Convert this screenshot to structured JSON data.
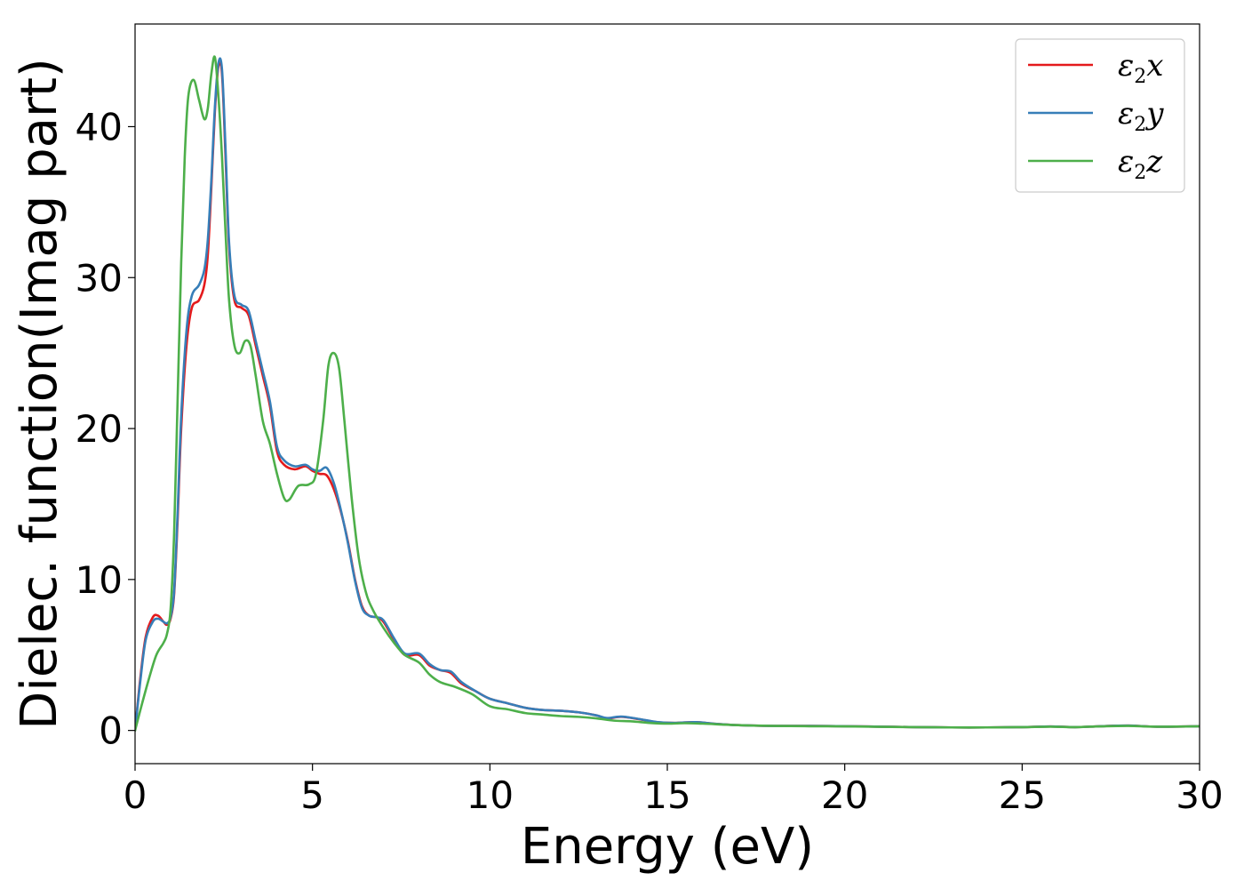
{
  "chart_data": {
    "type": "line",
    "title": "",
    "xlabel": "Energy (eV)",
    "ylabel": "Dielec. function(Imag part)",
    "xlim": [
      0,
      30
    ],
    "ylim": [
      -2.2,
      46.8
    ],
    "xticks": [
      0,
      5,
      10,
      15,
      20,
      25,
      30
    ],
    "yticks": [
      0,
      10,
      20,
      30,
      40
    ],
    "grid": false,
    "legend_position": "top-right",
    "series": [
      {
        "name": "ε2x",
        "legend_base": "ε",
        "legend_sub": "2",
        "legend_var": "x",
        "color": "#e41a1c",
        "points": [
          [
            0,
            0
          ],
          [
            0.15,
            3.5
          ],
          [
            0.3,
            6.2
          ],
          [
            0.5,
            7.5
          ],
          [
            0.65,
            7.6
          ],
          [
            0.8,
            7.2
          ],
          [
            0.9,
            7.0
          ],
          [
            1.0,
            7.4
          ],
          [
            1.1,
            9.0
          ],
          [
            1.2,
            14.0
          ],
          [
            1.3,
            20.0
          ],
          [
            1.45,
            25.5
          ],
          [
            1.6,
            28.0
          ],
          [
            1.8,
            28.5
          ],
          [
            1.95,
            29.5
          ],
          [
            2.05,
            31.5
          ],
          [
            2.15,
            36.0
          ],
          [
            2.25,
            41.0
          ],
          [
            2.35,
            44.0
          ],
          [
            2.45,
            43.5
          ],
          [
            2.55,
            38.0
          ],
          [
            2.65,
            32.0
          ],
          [
            2.8,
            28.5
          ],
          [
            3.0,
            28.0
          ],
          [
            3.2,
            27.5
          ],
          [
            3.4,
            25.5
          ],
          [
            3.6,
            23.5
          ],
          [
            3.8,
            21.5
          ],
          [
            4.0,
            18.5
          ],
          [
            4.2,
            17.6
          ],
          [
            4.5,
            17.3
          ],
          [
            4.8,
            17.5
          ],
          [
            5.0,
            17.2
          ],
          [
            5.2,
            17.0
          ],
          [
            5.4,
            16.9
          ],
          [
            5.6,
            16.0
          ],
          [
            5.8,
            14.5
          ],
          [
            6.0,
            12.5
          ],
          [
            6.2,
            10.0
          ],
          [
            6.4,
            8.2
          ],
          [
            6.6,
            7.6
          ],
          [
            6.8,
            7.5
          ],
          [
            7.0,
            7.2
          ],
          [
            7.3,
            6.0
          ],
          [
            7.6,
            5.0
          ],
          [
            8.0,
            5.0
          ],
          [
            8.3,
            4.3
          ],
          [
            8.6,
            4.0
          ],
          [
            8.9,
            3.8
          ],
          [
            9.2,
            3.1
          ],
          [
            9.6,
            2.6
          ],
          [
            10.0,
            2.1
          ],
          [
            10.5,
            1.8
          ],
          [
            11.0,
            1.5
          ],
          [
            11.5,
            1.35
          ],
          [
            12.0,
            1.3
          ],
          [
            12.5,
            1.2
          ],
          [
            13.0,
            1.0
          ],
          [
            13.3,
            0.8
          ],
          [
            13.7,
            0.9
          ],
          [
            14.2,
            0.75
          ],
          [
            14.7,
            0.55
          ],
          [
            15.2,
            0.5
          ],
          [
            15.8,
            0.55
          ],
          [
            16.3,
            0.45
          ],
          [
            17.0,
            0.35
          ],
          [
            18.0,
            0.3
          ],
          [
            19.0,
            0.3
          ],
          [
            20.0,
            0.28
          ],
          [
            21.0,
            0.25
          ],
          [
            22.0,
            0.22
          ],
          [
            23.0,
            0.2
          ],
          [
            24.0,
            0.2
          ],
          [
            25.0,
            0.22
          ],
          [
            25.8,
            0.26
          ],
          [
            26.5,
            0.22
          ],
          [
            27.2,
            0.28
          ],
          [
            28.0,
            0.32
          ],
          [
            28.8,
            0.25
          ],
          [
            30.0,
            0.28
          ]
        ]
      },
      {
        "name": "ε2y",
        "legend_base": "ε",
        "legend_sub": "2",
        "legend_var": "y",
        "color": "#377eb8",
        "points": [
          [
            0,
            0
          ],
          [
            0.15,
            3.3
          ],
          [
            0.3,
            6.0
          ],
          [
            0.5,
            7.2
          ],
          [
            0.65,
            7.4
          ],
          [
            0.8,
            7.2
          ],
          [
            0.9,
            7.1
          ],
          [
            1.0,
            7.5
          ],
          [
            1.1,
            9.2
          ],
          [
            1.2,
            14.5
          ],
          [
            1.3,
            20.8
          ],
          [
            1.45,
            26.5
          ],
          [
            1.6,
            28.8
          ],
          [
            1.8,
            29.5
          ],
          [
            1.95,
            30.5
          ],
          [
            2.05,
            32.5
          ],
          [
            2.15,
            36.5
          ],
          [
            2.25,
            41.3
          ],
          [
            2.35,
            44.2
          ],
          [
            2.45,
            43.8
          ],
          [
            2.55,
            38.5
          ],
          [
            2.65,
            32.3
          ],
          [
            2.8,
            28.8
          ],
          [
            3.0,
            28.2
          ],
          [
            3.2,
            27.8
          ],
          [
            3.4,
            25.8
          ],
          [
            3.6,
            23.8
          ],
          [
            3.8,
            21.8
          ],
          [
            4.0,
            18.8
          ],
          [
            4.2,
            17.9
          ],
          [
            4.5,
            17.5
          ],
          [
            4.8,
            17.6
          ],
          [
            5.0,
            17.3
          ],
          [
            5.2,
            17.2
          ],
          [
            5.4,
            17.4
          ],
          [
            5.6,
            16.4
          ],
          [
            5.8,
            14.6
          ],
          [
            6.0,
            12.4
          ],
          [
            6.2,
            9.9
          ],
          [
            6.4,
            8.1
          ],
          [
            6.6,
            7.6
          ],
          [
            6.8,
            7.5
          ],
          [
            7.0,
            7.3
          ],
          [
            7.3,
            6.1
          ],
          [
            7.6,
            5.1
          ],
          [
            8.0,
            5.1
          ],
          [
            8.3,
            4.4
          ],
          [
            8.6,
            4.0
          ],
          [
            8.9,
            3.9
          ],
          [
            9.2,
            3.2
          ],
          [
            9.6,
            2.6
          ],
          [
            10.0,
            2.1
          ],
          [
            10.5,
            1.8
          ],
          [
            11.0,
            1.5
          ],
          [
            11.5,
            1.35
          ],
          [
            12.0,
            1.3
          ],
          [
            12.5,
            1.2
          ],
          [
            13.0,
            1.0
          ],
          [
            13.3,
            0.82
          ],
          [
            13.7,
            0.92
          ],
          [
            14.2,
            0.76
          ],
          [
            14.7,
            0.56
          ],
          [
            15.2,
            0.5
          ],
          [
            15.8,
            0.55
          ],
          [
            16.3,
            0.45
          ],
          [
            17.0,
            0.35
          ],
          [
            18.0,
            0.3
          ],
          [
            19.0,
            0.3
          ],
          [
            20.0,
            0.28
          ],
          [
            21.0,
            0.25
          ],
          [
            22.0,
            0.22
          ],
          [
            23.0,
            0.2
          ],
          [
            24.0,
            0.2
          ],
          [
            25.0,
            0.22
          ],
          [
            25.8,
            0.26
          ],
          [
            26.5,
            0.22
          ],
          [
            27.2,
            0.28
          ],
          [
            28.0,
            0.32
          ],
          [
            28.8,
            0.25
          ],
          [
            30.0,
            0.28
          ]
        ]
      },
      {
        "name": "ε2z",
        "legend_base": "ε",
        "legend_sub": "2",
        "legend_var": "z",
        "color": "#4daf4a",
        "points": [
          [
            0,
            0
          ],
          [
            0.2,
            1.8
          ],
          [
            0.4,
            3.5
          ],
          [
            0.6,
            5.0
          ],
          [
            0.8,
            5.8
          ],
          [
            0.9,
            6.4
          ],
          [
            1.0,
            8.0
          ],
          [
            1.1,
            13.0
          ],
          [
            1.2,
            22.0
          ],
          [
            1.3,
            31.0
          ],
          [
            1.4,
            38.0
          ],
          [
            1.5,
            42.0
          ],
          [
            1.65,
            43.1
          ],
          [
            1.8,
            41.8
          ],
          [
            1.95,
            40.5
          ],
          [
            2.05,
            41.2
          ],
          [
            2.15,
            43.5
          ],
          [
            2.25,
            44.6
          ],
          [
            2.35,
            42.0
          ],
          [
            2.45,
            38.0
          ],
          [
            2.55,
            33.0
          ],
          [
            2.65,
            28.5
          ],
          [
            2.8,
            25.5
          ],
          [
            2.95,
            25.0
          ],
          [
            3.1,
            25.8
          ],
          [
            3.25,
            25.5
          ],
          [
            3.4,
            23.5
          ],
          [
            3.6,
            20.5
          ],
          [
            3.8,
            19.0
          ],
          [
            4.0,
            17.0
          ],
          [
            4.2,
            15.4
          ],
          [
            4.35,
            15.3
          ],
          [
            4.6,
            16.2
          ],
          [
            4.9,
            16.3
          ],
          [
            5.1,
            17.0
          ],
          [
            5.3,
            20.5
          ],
          [
            5.45,
            24.2
          ],
          [
            5.6,
            25.0
          ],
          [
            5.75,
            24.0
          ],
          [
            5.9,
            20.5
          ],
          [
            6.1,
            15.5
          ],
          [
            6.3,
            11.5
          ],
          [
            6.5,
            9.2
          ],
          [
            6.7,
            8.0
          ],
          [
            7.0,
            6.8
          ],
          [
            7.3,
            5.8
          ],
          [
            7.6,
            5.0
          ],
          [
            8.0,
            4.5
          ],
          [
            8.3,
            3.7
          ],
          [
            8.6,
            3.2
          ],
          [
            9.0,
            2.9
          ],
          [
            9.5,
            2.4
          ],
          [
            10.0,
            1.6
          ],
          [
            10.5,
            1.4
          ],
          [
            11.0,
            1.15
          ],
          [
            11.5,
            1.05
          ],
          [
            12.0,
            0.95
          ],
          [
            12.5,
            0.9
          ],
          [
            13.0,
            0.8
          ],
          [
            13.5,
            0.65
          ],
          [
            14.0,
            0.6
          ],
          [
            14.5,
            0.5
          ],
          [
            15.0,
            0.45
          ],
          [
            15.5,
            0.48
          ],
          [
            16.0,
            0.45
          ],
          [
            17.0,
            0.35
          ],
          [
            18.0,
            0.3
          ],
          [
            19.0,
            0.28
          ],
          [
            20.0,
            0.27
          ],
          [
            21.0,
            0.24
          ],
          [
            22.0,
            0.22
          ],
          [
            23.0,
            0.2
          ],
          [
            24.0,
            0.2
          ],
          [
            25.0,
            0.22
          ],
          [
            25.8,
            0.25
          ],
          [
            26.5,
            0.22
          ],
          [
            27.2,
            0.27
          ],
          [
            28.0,
            0.3
          ],
          [
            28.8,
            0.25
          ],
          [
            30.0,
            0.28
          ]
        ]
      }
    ]
  }
}
